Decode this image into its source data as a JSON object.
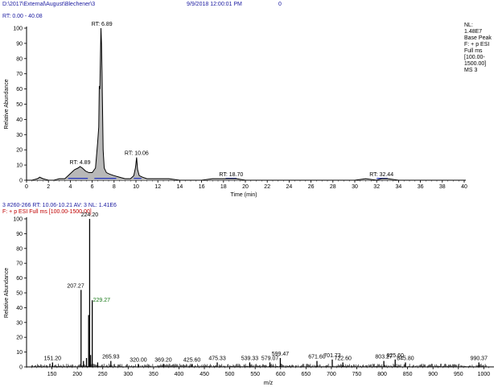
{
  "header": {
    "file_path": "D:\\2017\\External\\August\\Blechener\\3",
    "datetime": "9/9/2018 12:00:01 PM",
    "flag": "0"
  },
  "chromatogram": {
    "range_label": "RT: 0.00 - 40.08",
    "info": [
      "NL:",
      "1.48E7",
      "Base Peak",
      "F: + p ESI",
      "Full ms",
      "[100.00-",
      "1500.00]",
      "MS 3"
    ],
    "ylabel": "Relative Abundance",
    "xlabel": "Time (min)"
  },
  "spectrum": {
    "scan_header": "3 #260-266  RT: 10.06-10.21  AV: 3  NL: 1.41E6",
    "filter": "F: + p ESI Full ms [100.00-1500.00]",
    "ylabel": "Relative Abundance",
    "xlabel": "m/z"
  },
  "chart_data": [
    {
      "type": "line",
      "title": "",
      "xlabel": "Time (min)",
      "ylabel": "Relative Abundance",
      "xlim": [
        0,
        40
      ],
      "ylim": [
        0,
        100
      ],
      "x_ticks": [
        0,
        2,
        4,
        6,
        8,
        10,
        12,
        14,
        16,
        18,
        20,
        22,
        24,
        26,
        28,
        30,
        32,
        34,
        36,
        38,
        40
      ],
      "y_ticks": [
        0,
        10,
        20,
        30,
        40,
        50,
        60,
        70,
        80,
        90,
        100
      ],
      "series": [
        {
          "x": [
            0,
            0.5,
            1.0,
            1.2,
            1.5,
            2.0,
            2.5,
            3.0,
            3.5,
            3.8,
            4.1,
            4.4,
            4.7,
            4.89,
            5.1,
            5.4,
            5.7,
            6.0,
            6.3,
            6.5,
            6.6,
            6.65,
            6.7,
            6.75,
            6.8,
            6.85,
            6.9,
            6.95,
            7.0,
            7.1,
            7.3,
            7.6,
            8.0,
            8.5,
            9.0,
            9.5,
            9.8,
            9.95,
            10.06,
            10.15,
            10.3,
            10.6,
            11.0,
            12.0,
            13.0,
            14.0,
            15.0,
            16.0,
            17.0,
            18.0,
            18.7,
            19.2,
            20.0,
            22.0,
            24.0,
            26.0,
            28.0,
            30.0,
            31.0,
            32.0,
            32.44,
            33.0,
            34.0,
            36.0,
            38.0,
            40.0
          ],
          "y": [
            0,
            0,
            1,
            2,
            1,
            0,
            0,
            1,
            1,
            3,
            5,
            7,
            8,
            9,
            8,
            6,
            5,
            5,
            8,
            25,
            35,
            62,
            60,
            80,
            100,
            90,
            70,
            45,
            20,
            8,
            5,
            4,
            3,
            2,
            1,
            1,
            3,
            8,
            15,
            7,
            3,
            2,
            1,
            1,
            1,
            0,
            0,
            0,
            1,
            1,
            1,
            1,
            0,
            0,
            0,
            0,
            0,
            0,
            1,
            0,
            1,
            1,
            0,
            0,
            0,
            0
          ]
        }
      ],
      "peak_labels": [
        {
          "x": 4.89,
          "y": 9,
          "text": "RT: 4.89"
        },
        {
          "x": 6.89,
          "y": 100,
          "text": "RT: 6.89"
        },
        {
          "x": 10.06,
          "y": 15,
          "text": "RT: 10.06"
        },
        {
          "x": 18.7,
          "y": 1,
          "text": "RT: 18.70"
        },
        {
          "x": 32.44,
          "y": 1,
          "text": "RT: 32.44"
        }
      ]
    },
    {
      "type": "bar",
      "title": "",
      "xlabel": "m/z",
      "ylabel": "Relative Abundance",
      "xlim": [
        100,
        1020
      ],
      "ylim": [
        0,
        100
      ],
      "x_ticks": [
        150,
        200,
        250,
        300,
        350,
        400,
        450,
        500,
        550,
        600,
        650,
        700,
        750,
        800,
        850,
        900,
        950,
        1000
      ],
      "y_ticks": [
        0,
        10,
        20,
        30,
        40,
        50,
        60,
        70,
        80,
        90,
        100
      ],
      "peaks": [
        {
          "mz": 151.2,
          "y": 3,
          "label": "151.20"
        },
        {
          "mz": 207.27,
          "y": 52,
          "label": "207.27"
        },
        {
          "mz": 212.0,
          "y": 4
        },
        {
          "mz": 218.0,
          "y": 6
        },
        {
          "mz": 222.27,
          "y": 35
        },
        {
          "mz": 224.2,
          "y": 100,
          "label": "224.20"
        },
        {
          "mz": 226.0,
          "y": 8
        },
        {
          "mz": 229.27,
          "y": 45,
          "label": "229.27"
        },
        {
          "mz": 240.0,
          "y": 3
        },
        {
          "mz": 265.93,
          "y": 4,
          "label": "265.93"
        },
        {
          "mz": 320.0,
          "y": 2,
          "label": "320.00"
        },
        {
          "mz": 369.2,
          "y": 2,
          "label": "369.20"
        },
        {
          "mz": 425.6,
          "y": 2,
          "label": "425.60"
        },
        {
          "mz": 475.33,
          "y": 3,
          "label": "475.33"
        },
        {
          "mz": 539.33,
          "y": 3,
          "label": "539.33"
        },
        {
          "mz": 579.07,
          "y": 3,
          "label": "579.07"
        },
        {
          "mz": 599.47,
          "y": 6,
          "label": "599.47"
        },
        {
          "mz": 671.6,
          "y": 4,
          "label": "671.60"
        },
        {
          "mz": 701.73,
          "y": 5,
          "label": "701.73"
        },
        {
          "mz": 722.6,
          "y": 3,
          "label": "722.60"
        },
        {
          "mz": 803.27,
          "y": 4,
          "label": "803.27"
        },
        {
          "mz": 825.6,
          "y": 5,
          "label": "825.60"
        },
        {
          "mz": 845.8,
          "y": 3,
          "label": "845.80"
        },
        {
          "mz": 990.37,
          "y": 3,
          "label": "990.37"
        }
      ]
    }
  ]
}
